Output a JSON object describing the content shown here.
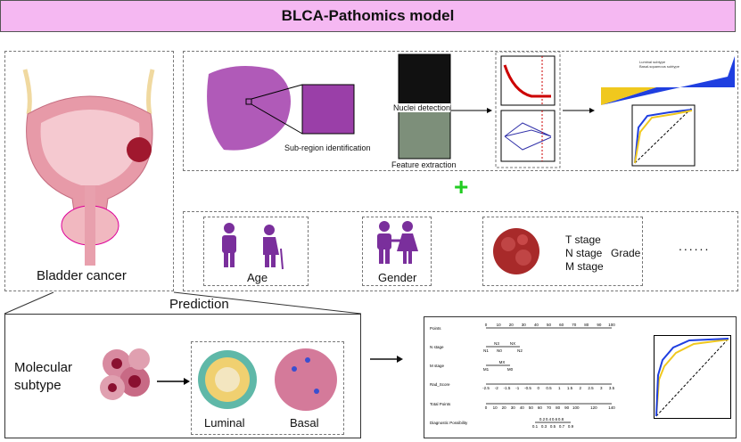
{
  "title": "BLCA-Pathomics model",
  "left_panel": {
    "label": "Bladder cancer"
  },
  "pipeline": {
    "subregion": "Sub-region identification",
    "nuclei": "Nuclei detection",
    "features": "Feature extraction",
    "legend": [
      "Luminal subtype",
      "Basal-squamous subtype"
    ]
  },
  "plus": "+",
  "clinical": {
    "age": "Age",
    "gender": "Gender",
    "t": "T stage",
    "n": "N stage",
    "m": "M stage",
    "grade": "Grade",
    "more": "......"
  },
  "prediction": {
    "title": "Prediction",
    "molecular": "Molecular subtype",
    "luminal": "Luminal",
    "basal": "Basal"
  },
  "nomogram": {
    "rows": [
      "Points",
      "N stage",
      "M stage",
      "Rad_Score",
      "Total Points",
      "Diagnostic Possibility"
    ],
    "points_ticks": [
      "0",
      "10",
      "20",
      "30",
      "40",
      "50",
      "60",
      "70",
      "80",
      "90",
      "100"
    ],
    "n_labels_top": [
      "N3",
      "NX"
    ],
    "n_labels_bottom": [
      "N1",
      "N0",
      "N2"
    ],
    "m_labels_top": [
      "MX"
    ],
    "m_labels_bottom": [
      "M1",
      "M0"
    ],
    "rad_ticks": [
      "-2.5",
      "-2",
      "-1.5",
      "-1",
      "-0.5",
      "0",
      "0.5",
      "1",
      "1.5",
      "2",
      "2.5",
      "3",
      "3.5"
    ],
    "total_ticks": [
      "0",
      "10",
      "20",
      "30",
      "40",
      "50",
      "60",
      "70",
      "80",
      "90",
      "100",
      "120",
      "140"
    ],
    "diag_top": [
      "0.2",
      "0.4",
      "0.6",
      "0.8"
    ],
    "diag_bottom": [
      "0.1",
      "0.3",
      "0.5",
      "0.7",
      "0.9"
    ]
  },
  "colors": {
    "title_bg": "#f5b8f2",
    "purple": "#7a2f9c",
    "plus": "#22cc22",
    "luminal": "#1f3fe0",
    "basal": "#f0c81e"
  }
}
